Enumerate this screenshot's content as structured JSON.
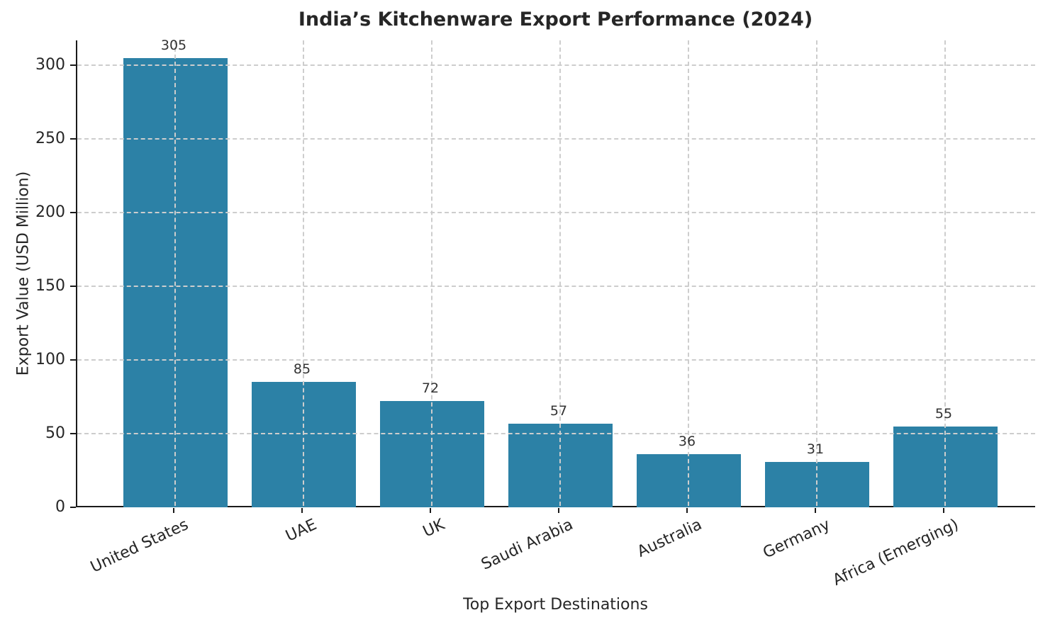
{
  "chart_data": {
    "type": "bar",
    "title": "India’s Kitchenware Export Performance (2024)",
    "xlabel": "Top Export Destinations",
    "ylabel": "Export Value (USD Million)",
    "categories": [
      "United States",
      "UAE",
      "UK",
      "Saudi Arabia",
      "Australia",
      "Germany",
      "Africa (Emerging)"
    ],
    "values": [
      305,
      85,
      72,
      57,
      36,
      31,
      55
    ],
    "yticks": [
      0,
      50,
      100,
      150,
      200,
      250,
      300
    ],
    "ylim": [
      0,
      317
    ],
    "grid": "dashed-both-axes",
    "legend": "none",
    "bar_value_labels": [
      "305",
      "85",
      "72",
      "57",
      "36",
      "31",
      "55"
    ],
    "colors": {
      "bar": "#2c81a6",
      "grid": "#cdcdcd",
      "axis": "#1a1a1a",
      "text": "#262626",
      "value_label": "#333333",
      "background": "#ffffff"
    }
  }
}
